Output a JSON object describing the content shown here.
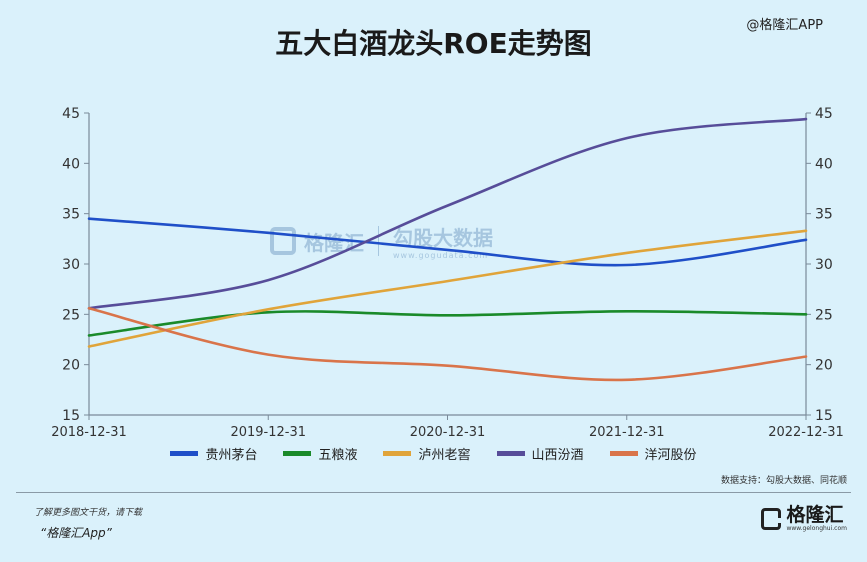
{
  "header": {
    "title": "五大白酒龙头ROE走势图",
    "brand": "@格隆汇APP"
  },
  "watermark": {
    "left": "格隆汇",
    "right": "勾股大数据",
    "sub": "www.gogudata.com"
  },
  "source": "数据支持：勾股大数据、同花顺",
  "footer": {
    "promo": "了解更多图文干货，请下载",
    "app": "“格隆汇App”",
    "logo": "格隆汇",
    "logo_sub": "www.gelonghui.com"
  },
  "chart_data": {
    "type": "line",
    "x": [
      "2018-12-31",
      "2019-12-31",
      "2020-12-31",
      "2021-12-31",
      "2022-12-31"
    ],
    "ylim": [
      15,
      45
    ],
    "yticks": [
      15,
      20,
      25,
      30,
      35,
      40,
      45
    ],
    "grid": false,
    "legend_position": "bottom",
    "series": [
      {
        "name": "贵州茅台",
        "color": "#1f4fc8",
        "values": [
          34.5,
          33.1,
          31.4,
          29.9,
          32.4
        ]
      },
      {
        "name": "五粮液",
        "color": "#1a8a2a",
        "values": [
          22.9,
          25.2,
          24.9,
          25.3,
          25.0
        ]
      },
      {
        "name": "泸州老窖",
        "color": "#e0a43a",
        "values": [
          21.8,
          25.5,
          28.3,
          31.1,
          33.3
        ]
      },
      {
        "name": "山西汾酒",
        "color": "#574d99",
        "values": [
          25.6,
          28.4,
          35.8,
          42.5,
          44.4
        ]
      },
      {
        "name": "洋河股份",
        "color": "#d9744a",
        "values": [
          25.6,
          21.0,
          19.9,
          18.5,
          20.8
        ]
      }
    ]
  }
}
